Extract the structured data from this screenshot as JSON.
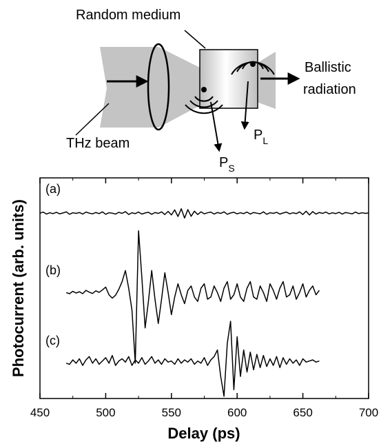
{
  "diagram": {
    "medium_label": "Random medium",
    "output_label": [
      "Ballistic",
      "radiation"
    ],
    "beam_label": "THz beam",
    "scatterers": [
      {
        "label": "P",
        "subscript": "L"
      },
      {
        "label": "P",
        "subscript": "S"
      }
    ]
  },
  "chart_data": {
    "type": "line",
    "xlabel": "Delay (ps)",
    "ylabel": "Photocurrent (arb. units)",
    "xlim": [
      450,
      700
    ],
    "xticks": [
      450,
      500,
      550,
      600,
      650,
      700
    ],
    "x_minor_ticks": [
      475,
      525,
      575,
      625,
      675
    ],
    "ylim": [
      0,
      100
    ],
    "x": [
      450,
      452.5,
      455,
      457.5,
      460,
      462.5,
      465,
      467.5,
      470,
      472.5,
      475,
      477.5,
      480,
      482.5,
      485,
      487.5,
      490,
      492.5,
      495,
      497.5,
      500,
      502.5,
      505,
      507.5,
      510,
      512.5,
      515,
      517.5,
      520,
      522.5,
      525,
      527.5,
      530,
      532.5,
      535,
      537.5,
      540,
      542.5,
      545,
      547.5,
      550,
      552.5,
      555,
      557.5,
      560,
      562.5,
      565,
      567.5,
      570,
      572.5,
      575,
      577.5,
      580,
      582.5,
      585,
      587.5,
      590,
      592.5,
      595,
      597.5,
      600,
      602.5,
      605,
      607.5,
      610,
      612.5,
      615,
      617.5,
      620,
      622.5,
      625,
      627.5,
      630,
      632.5,
      635,
      637.5,
      640,
      642.5,
      645,
      647.5,
      650,
      652.5,
      655,
      657.5,
      660,
      662.5,
      665,
      667.5,
      670,
      672.5,
      675,
      677.5,
      680,
      682.5,
      685,
      687.5,
      690,
      692.5,
      695,
      697.5,
      700
    ],
    "series": [
      {
        "name": "(a)",
        "color": "#000000",
        "values": [
          84,
          84.5,
          83.6,
          84.2,
          83.8,
          84.4,
          83.7,
          84.1,
          84.6,
          83.5,
          84.2,
          83.9,
          84.3,
          83.6,
          84.5,
          84,
          83.7,
          84.3,
          83.8,
          84.6,
          83.5,
          84.2,
          84,
          83.6,
          84.4,
          83.9,
          84.7,
          83.4,
          84.2,
          83.8,
          84.5,
          83.6,
          84.1,
          84.4,
          83.5,
          84.3,
          83.9,
          84.6,
          83.4,
          84.8,
          83.2,
          85.5,
          82.5,
          86,
          81.8,
          85.6,
          82.6,
          84.9,
          83.4,
          84.6,
          83.7,
          84.2,
          84.5,
          83.6,
          84.3,
          83.9,
          84.6,
          83.5,
          84.1,
          84.4,
          83.7,
          84.2,
          83.8,
          84.5,
          83.6,
          84.3,
          84,
          83.7,
          84.6,
          83.5,
          84.2,
          83.9,
          84.4,
          83.6,
          84.1,
          84.5,
          83.7,
          84.2,
          83.8,
          84.6,
          83.4,
          84.9,
          83.2,
          84.7,
          83.6,
          84.3,
          83.9,
          84.5,
          83.7,
          84.2,
          83.8,
          84.4,
          83.6,
          84.3,
          84,
          83.7,
          84.5,
          83.8,
          84.2,
          83.9,
          84.1
        ]
      },
      {
        "name": "(b)",
        "color": "#000000",
        "values": [
          null,
          null,
          null,
          null,
          null,
          null,
          null,
          null,
          48,
          47.5,
          48.6,
          47.8,
          48.4,
          47.5,
          49,
          48.2,
          47.6,
          48.8,
          48.1,
          49.2,
          50.5,
          47,
          45.5,
          46.8,
          49.5,
          53,
          58,
          50,
          40,
          16,
          76,
          55,
          32,
          44,
          58,
          45,
          34,
          45,
          57,
          48,
          38,
          46,
          52,
          47,
          43,
          49,
          51,
          46,
          44,
          50,
          52,
          45,
          46,
          51,
          48,
          44,
          50,
          53,
          45,
          47,
          52,
          46,
          44,
          50,
          53,
          46,
          45,
          51,
          48,
          44,
          52,
          49,
          45,
          50,
          53,
          46,
          47,
          51,
          45,
          48,
          52,
          46,
          49,
          51,
          47,
          49,
          null,
          null,
          null,
          null,
          null,
          null,
          null,
          null,
          null,
          null,
          null,
          null,
          null,
          null,
          null
        ]
      },
      {
        "name": "(c)",
        "color": "#000000",
        "values": [
          null,
          null,
          null,
          null,
          null,
          null,
          null,
          null,
          16,
          15.5,
          17.5,
          16,
          18,
          15,
          17.5,
          19,
          16,
          18,
          15.5,
          17,
          18.5,
          16,
          19.5,
          15,
          17,
          18,
          16.5,
          19,
          15,
          17.5,
          16,
          18.5,
          15.5,
          17,
          19,
          16,
          17.5,
          15.5,
          18,
          16.5,
          17,
          15.5,
          18,
          16,
          17.5,
          16.5,
          18,
          15.5,
          17,
          16,
          18.5,
          15,
          17.5,
          19,
          22,
          10,
          1,
          25,
          35,
          4,
          28,
          10,
          22,
          12,
          21,
          13,
          20,
          14,
          19.5,
          14.5,
          18,
          15,
          19,
          14,
          18.5,
          15.5,
          18,
          16,
          17.5,
          15,
          18,
          16.5,
          17,
          17.5,
          16.5,
          17,
          null,
          null,
          null,
          null,
          null,
          null,
          null,
          null,
          null,
          null,
          null,
          null,
          null,
          null,
          null
        ]
      }
    ]
  }
}
